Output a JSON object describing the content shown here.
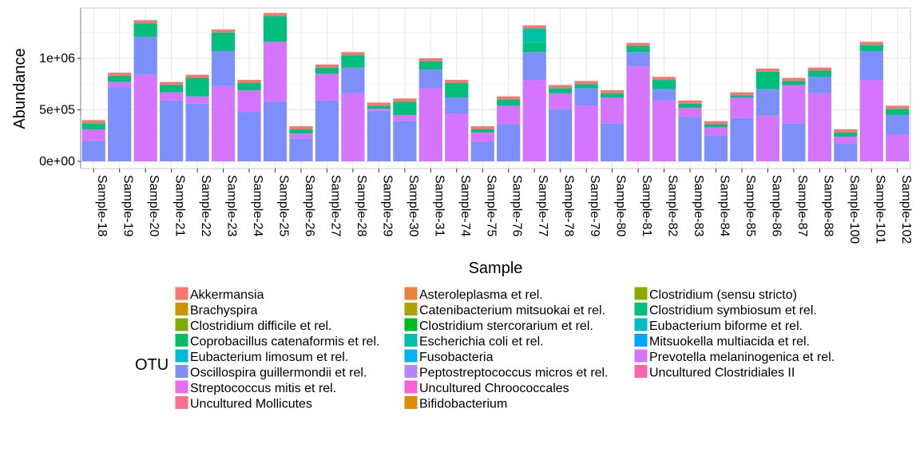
{
  "chart_data": {
    "type": "bar",
    "stacked": true,
    "xlabel": "Sample",
    "ylabel": "Abundance",
    "ylim": [
      0,
      1420000
    ],
    "yticks": [
      0,
      500000,
      1000000
    ],
    "ytick_labels": [
      "0e+00",
      "5e+05",
      "1e+06"
    ],
    "grid": true,
    "legend_title": "OTU",
    "legend_position": "bottom",
    "categories": [
      "Sample-18",
      "Sample-19",
      "Sample-20",
      "Sample-21",
      "Sample-22",
      "Sample-23",
      "Sample-24",
      "Sample-25",
      "Sample-26",
      "Sample-27",
      "Sample-28",
      "Sample-29",
      "Sample-30",
      "Sample-31",
      "Sample-74",
      "Sample-75",
      "Sample-76",
      "Sample-77",
      "Sample-78",
      "Sample-79",
      "Sample-80",
      "Sample-81",
      "Sample-82",
      "Sample-83",
      "Sample-84",
      "Sample-85",
      "Sample-86",
      "Sample-87",
      "Sample-88",
      "Sample-100",
      "Sample-101",
      "Sample-102"
    ],
    "legend": [
      {
        "label": "Akkermansia",
        "color": "#F8766D"
      },
      {
        "label": "Brachyspira",
        "color": "#CD9600"
      },
      {
        "label": "Clostridium difficile et rel.",
        "color": "#7CAE00"
      },
      {
        "label": "Coprobacillus catenaformis et rel.",
        "color": "#00BE67"
      },
      {
        "label": "Eubacterium limosum et rel.",
        "color": "#00BBDA"
      },
      {
        "label": "Oscillospira guillermondii et rel.",
        "color": "#7C8FFA"
      },
      {
        "label": "Streptococcus mitis et rel.",
        "color": "#E76BF3"
      },
      {
        "label": "Uncultured Mollicutes",
        "color": "#FF6C91"
      },
      {
        "label": "Asteroleplasma et rel.",
        "color": "#E8853A"
      },
      {
        "label": "Catenibacterium mitsuokai et rel.",
        "color": "#ABA300"
      },
      {
        "label": "Clostridium stercorarium et rel.",
        "color": "#00B81F"
      },
      {
        "label": "Escherichia coli et rel.",
        "color": "#00C1A3"
      },
      {
        "label": "Fusobacteria",
        "color": "#00B2F0"
      },
      {
        "label": "Peptostreptococcus micros et rel.",
        "color": "#B385FF"
      },
      {
        "label": "Uncultured Chroococcales",
        "color": "#FB61D7"
      },
      {
        "label": "Bifidobacterium",
        "color": "#DE8C00"
      },
      {
        "label": "Clostridium (sensu stricto)",
        "color": "#8CAB00"
      },
      {
        "label": "Clostridium symbiosum et rel.",
        "color": "#00BF7D"
      },
      {
        "label": "Eubacterium biforme et rel.",
        "color": "#00BFC4"
      },
      {
        "label": "Mitsuokella multiacida et rel.",
        "color": "#00A5FF"
      },
      {
        "label": "Prevotella melaninogenica et rel.",
        "color": "#D575FE"
      },
      {
        "label": "Uncultured Clostridiales II",
        "color": "#FF65AE"
      }
    ],
    "series": [
      {
        "name": "Oscillospira guillermondii et rel.",
        "values": [
          200000,
          720000,
          0,
          590000,
          560000,
          0,
          480000,
          580000,
          220000,
          590000,
          0,
          490000,
          390000,
          0,
          0,
          190000,
          360000,
          0,
          510000,
          0,
          370000,
          0,
          0,
          430000,
          250000,
          420000,
          0,
          370000,
          0,
          170000,
          0,
          0
        ]
      },
      {
        "name": "Prevotella melaninogenica et rel.",
        "values": [
          110000,
          50000,
          840000,
          80000,
          70000,
          730000,
          210000,
          580000,
          50000,
          260000,
          660000,
          20000,
          60000,
          710000,
          460000,
          90000,
          180000,
          790000,
          150000,
          540000,
          250000,
          920000,
          590000,
          90000,
          80000,
          200000,
          440000,
          370000,
          660000,
          70000,
          790000,
          260000
        ]
      },
      {
        "name": "Oscillospira guillermondii et rel.",
        "values": [
          0,
          0,
          370000,
          0,
          0,
          340000,
          0,
          0,
          0,
          0,
          250000,
          0,
          0,
          180000,
          160000,
          0,
          0,
          270000,
          0,
          170000,
          0,
          140000,
          110000,
          0,
          0,
          0,
          260000,
          0,
          160000,
          0,
          280000,
          190000
        ]
      },
      {
        "name": "Clostridium symbiosum et rel.",
        "values": [
          60000,
          60000,
          130000,
          70000,
          180000,
          180000,
          70000,
          250000,
          40000,
          60000,
          120000,
          30000,
          130000,
          80000,
          140000,
          30000,
          60000,
          90000,
          50000,
          40000,
          40000,
          60000,
          90000,
          40000,
          30000,
          20000,
          170000,
          40000,
          60000,
          40000,
          60000,
          60000
        ]
      },
      {
        "name": "Escherichia coli et rel.",
        "values": [
          0,
          0,
          0,
          0,
          0,
          0,
          0,
          0,
          0,
          0,
          0,
          0,
          0,
          0,
          0,
          0,
          0,
          140000,
          0,
          0,
          0,
          0,
          0,
          0,
          0,
          0,
          0,
          0,
          0,
          0,
          0,
          0
        ]
      },
      {
        "name": "Akkermansia",
        "values": [
          30000,
          30000,
          30000,
          30000,
          30000,
          30000,
          30000,
          30000,
          30000,
          30000,
          30000,
          30000,
          30000,
          30000,
          30000,
          30000,
          30000,
          30000,
          30000,
          30000,
          30000,
          30000,
          30000,
          30000,
          30000,
          30000,
          30000,
          30000,
          30000,
          30000,
          30000,
          30000
        ]
      }
    ]
  }
}
